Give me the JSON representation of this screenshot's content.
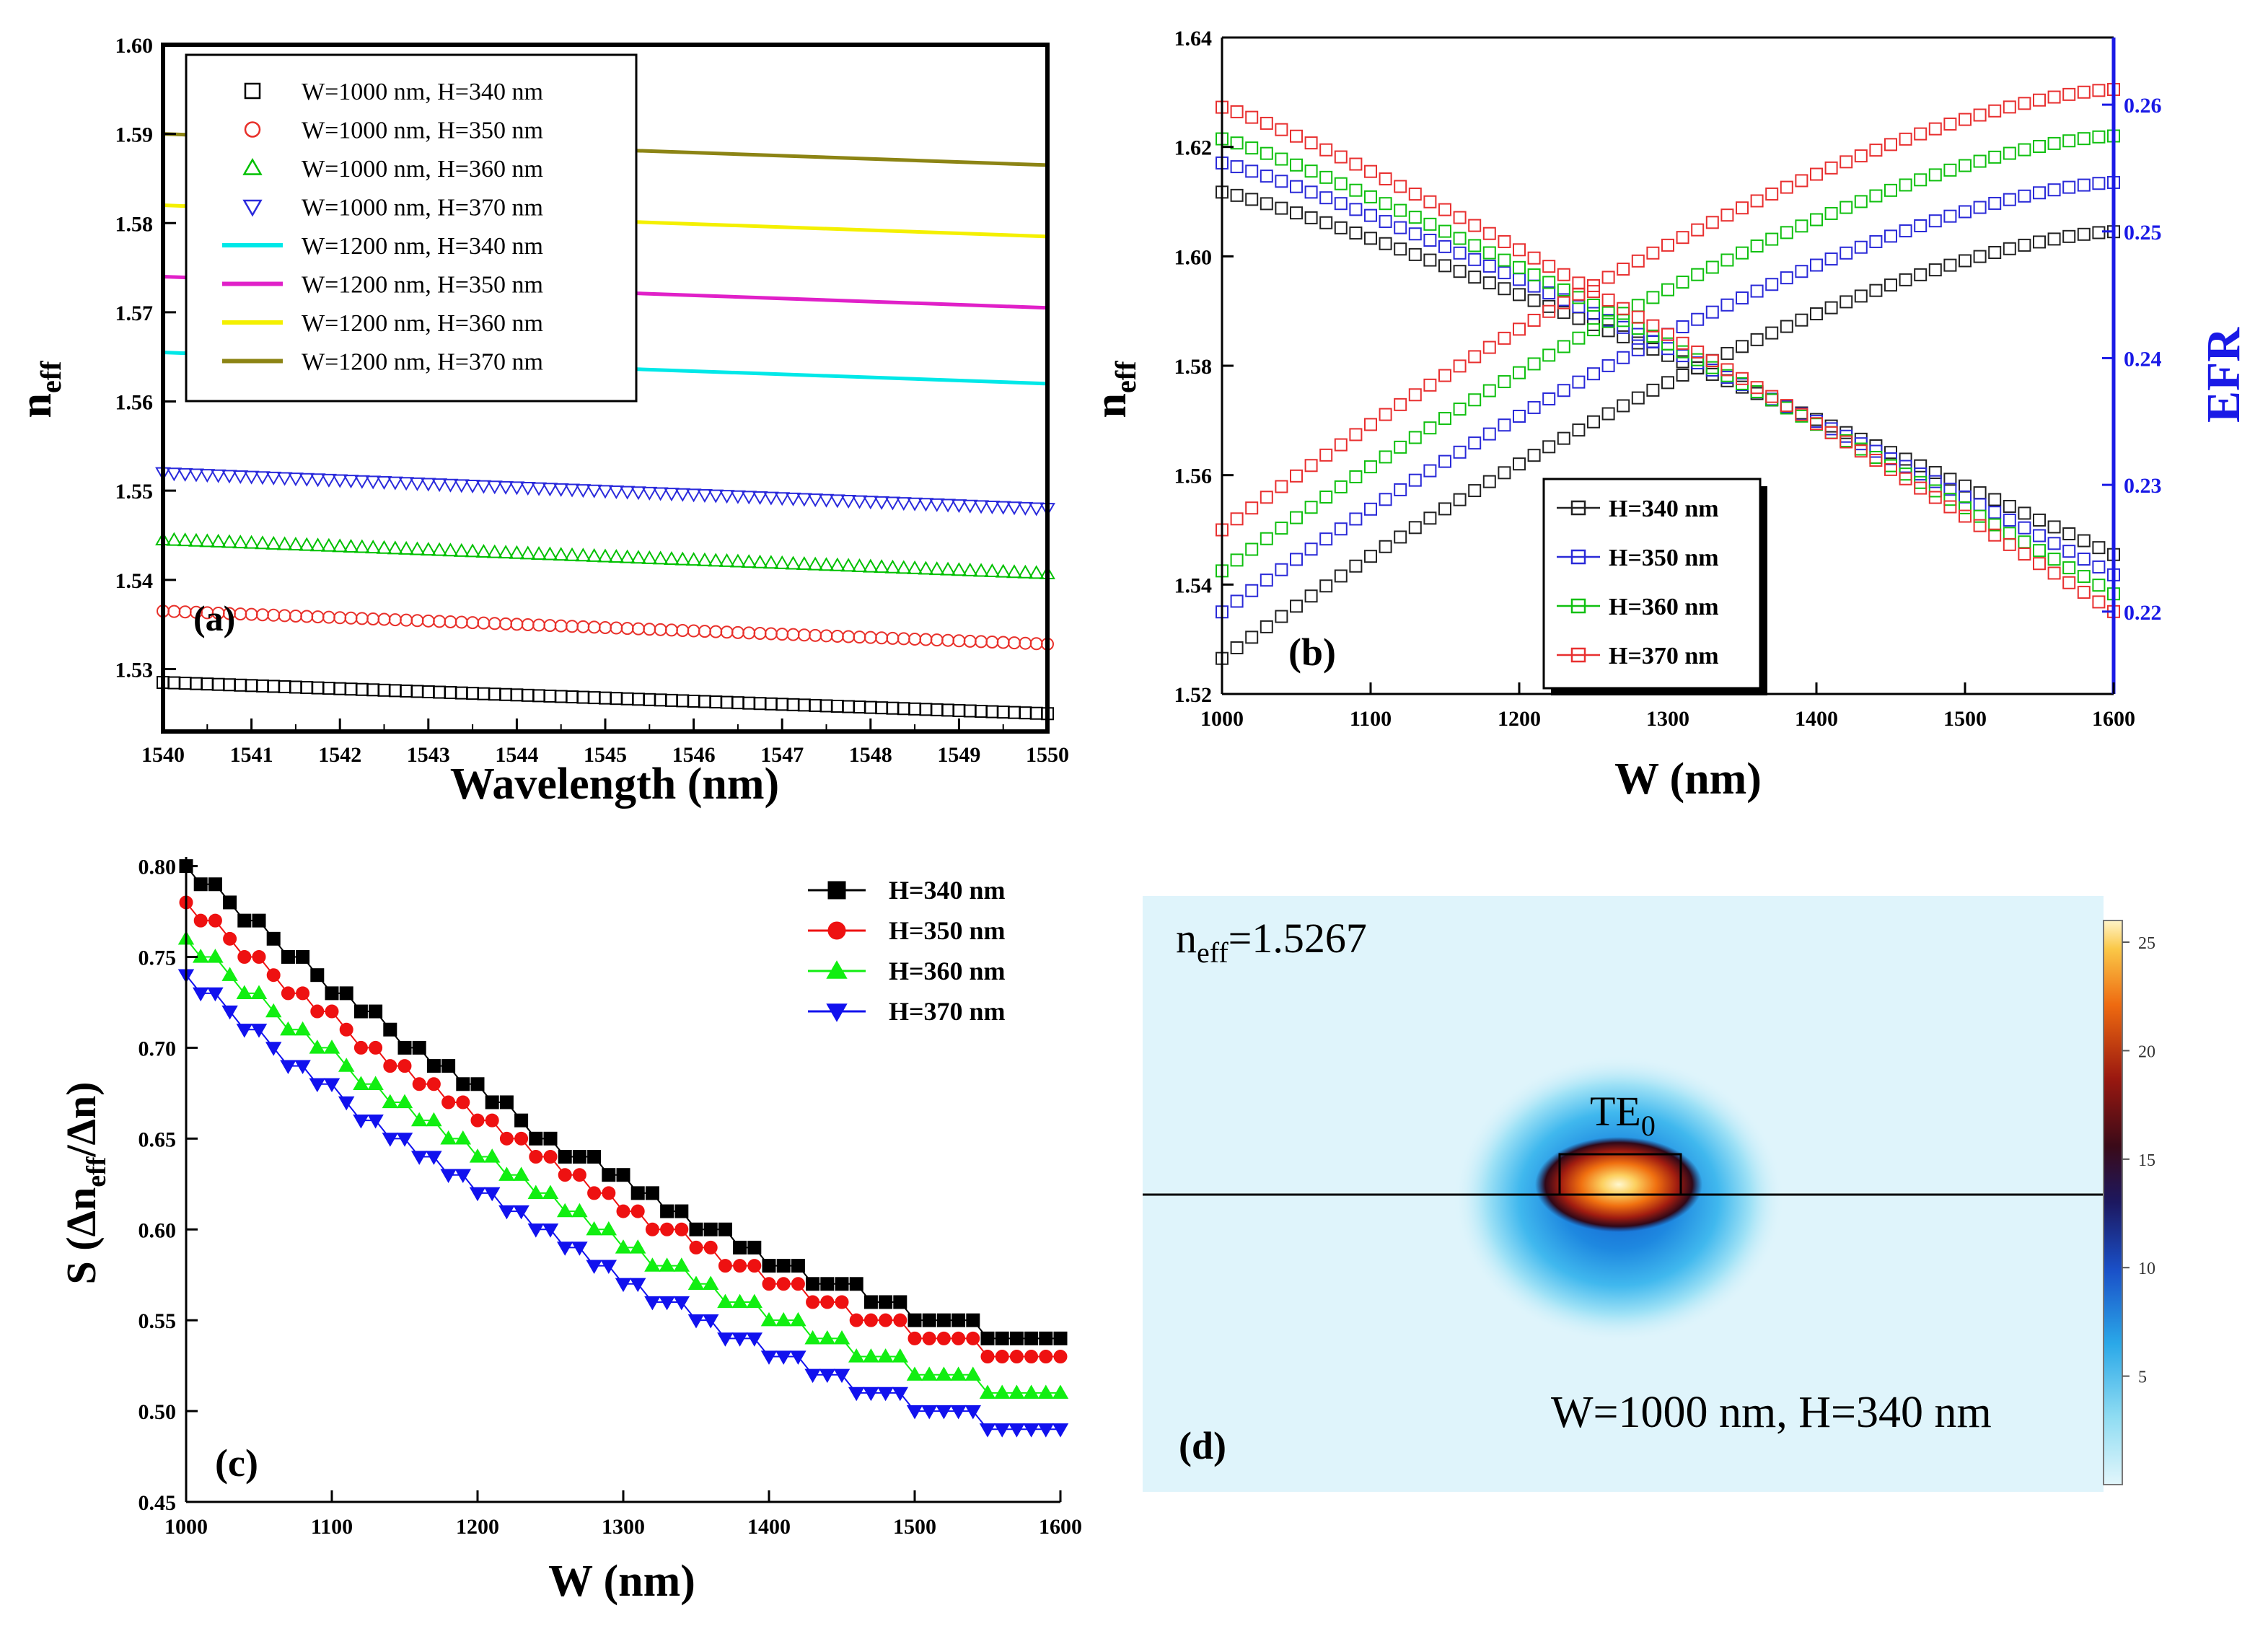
{
  "chart_data": [
    {
      "panel": "(a)",
      "type": "scatter",
      "title": "",
      "xlabel": "Wavelength (nm)",
      "ylabel": "n_eff",
      "xlim": [
        1540,
        1550
      ],
      "ylim": [
        1.523,
        1.6
      ],
      "xticks": [
        1540,
        1541,
        1542,
        1543,
        1544,
        1545,
        1546,
        1547,
        1548,
        1549,
        1550
      ],
      "yticks": [
        1.53,
        1.54,
        1.55,
        1.56,
        1.57,
        1.58,
        1.59,
        1.6
      ],
      "ytick_labels": [
        "1.53",
        "1.54",
        "1.55",
        "1.56",
        "1.57",
        "1.58",
        "1.59",
        "1.60"
      ],
      "label": "(a)",
      "legend_position": "top-left",
      "series": [
        {
          "name": "W=1000 nm, H=340 nm",
          "marker": "square",
          "color": "#000000",
          "start": 1.5285,
          "end": 1.525
        },
        {
          "name": "W=1000 nm, H=350 nm",
          "marker": "circle",
          "color": "#e8302a",
          "start": 1.5365,
          "end": 1.5328
        },
        {
          "name": "W=1000 nm, H=360 nm",
          "marker": "triangle-up",
          "color": "#00c000",
          "start": 1.5445,
          "end": 1.5407
        },
        {
          "name": "W=1000 nm, H=370 nm",
          "marker": "triangle-down",
          "color": "#2a2adc",
          "start": 1.552,
          "end": 1.548
        },
        {
          "name": "W=1200 nm, H=340 nm",
          "marker": "line",
          "color": "#00e8e8",
          "start": 1.5655,
          "end": 1.562
        },
        {
          "name": "W=1200 nm, H=350 nm",
          "marker": "line",
          "color": "#e020c8",
          "start": 1.574,
          "end": 1.5705
        },
        {
          "name": "W=1200 nm, H=360 nm",
          "marker": "line",
          "color": "#f4f000",
          "start": 1.582,
          "end": 1.5785
        },
        {
          "name": "W=1200 nm, H=370 nm",
          "marker": "line",
          "color": "#8c8414",
          "start": 1.59,
          "end": 1.5865
        }
      ]
    },
    {
      "panel": "(b)",
      "type": "scatter",
      "xlabel": "W (nm)",
      "ylabel": "n_eff",
      "ylabel_right": "EFR",
      "xlim": [
        1000,
        1600
      ],
      "ylim": [
        1.52,
        1.64
      ],
      "ylim_right": [
        0.2135,
        0.2653
      ],
      "xticks": [
        1000,
        1100,
        1200,
        1300,
        1400,
        1500,
        1600
      ],
      "yticks": [
        1.52,
        1.54,
        1.56,
        1.58,
        1.6,
        1.62,
        1.64
      ],
      "ytick_labels": [
        "1.52",
        "1.54",
        "1.56",
        "1.58",
        "1.60",
        "1.62",
        "1.64"
      ],
      "yticks_right": [
        0.22,
        0.23,
        0.24,
        0.25,
        0.26
      ],
      "ytick_labels_right": [
        "0.22",
        "0.23",
        "0.24",
        "0.25",
        "0.26"
      ],
      "label": "(b)",
      "legend_position": "bottom-right",
      "series": [
        {
          "name": "H=340 nm",
          "color": "#222222",
          "neff": [
            1.5265,
            1.6045
          ],
          "efr": [
            0.2531,
            0.2245
          ]
        },
        {
          "name": "H=350 nm",
          "color": "#2a2ad8",
          "neff": [
            1.535,
            1.6135
          ],
          "efr": [
            0.2554,
            0.2229
          ]
        },
        {
          "name": "H=360 nm",
          "color": "#10c010",
          "neff": [
            1.5425,
            1.622
          ],
          "efr": [
            0.2573,
            0.2214
          ]
        },
        {
          "name": "H=370 nm",
          "color": "#e83030",
          "neff": [
            1.55,
            1.6305
          ],
          "efr": [
            0.2598,
            0.22
          ]
        }
      ]
    },
    {
      "panel": "(c)",
      "type": "scatter",
      "xlabel": "W (nm)",
      "ylabel": "S (Δn_eff/Δn)",
      "xlim": [
        1000,
        1600
      ],
      "ylim": [
        0.45,
        0.805
      ],
      "xticks": [
        1000,
        1100,
        1200,
        1300,
        1400,
        1500,
        1600
      ],
      "yticks": [
        0.45,
        0.5,
        0.55,
        0.6,
        0.65,
        0.7,
        0.75,
        0.8
      ],
      "ytick_labels": [
        "0.45",
        "0.50",
        "0.55",
        "0.60",
        "0.65",
        "0.70",
        "0.75",
        "0.80"
      ],
      "label": "(c)",
      "legend_position": "top-right",
      "series": [
        {
          "name": "H=340 nm",
          "marker": "square",
          "color": "#000000",
          "start": 0.8,
          "end": 0.54
        },
        {
          "name": "H=350 nm",
          "marker": "circle",
          "color": "#ee1111",
          "start": 0.78,
          "end": 0.53
        },
        {
          "name": "H=360 nm",
          "marker": "triangle-up",
          "color": "#11ee11",
          "start": 0.76,
          "end": 0.51
        },
        {
          "name": "H=370 nm",
          "marker": "triangle-down",
          "color": "#1111ee",
          "start": 0.74,
          "end": 0.49
        }
      ]
    },
    {
      "panel": "(d)",
      "type": "heatmap",
      "annotation": "n_eff=1.5267",
      "mode_label": "TE0",
      "dims_label": "W=1000 nm, H=340 nm",
      "label": "(d)",
      "colorbar_ticks": [
        5,
        10,
        15,
        20,
        25
      ],
      "colorbar_range": [
        0,
        26
      ]
    }
  ]
}
